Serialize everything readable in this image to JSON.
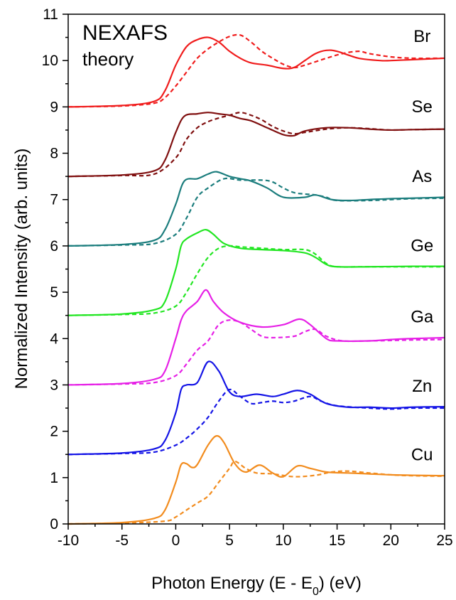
{
  "chart_data": {
    "type": "line",
    "title": "NEXAFS",
    "subtitle": "theory",
    "xlabel_parts": [
      "Photon Energy (E - E",
      "0",
      ") (eV)"
    ],
    "ylabel": "Normalized Intensity (arb. units)",
    "xlim": [
      -10,
      25
    ],
    "ylim": [
      0,
      11
    ],
    "xticks": [
      -10,
      -5,
      0,
      5,
      10,
      15,
      20,
      25
    ],
    "yticks": [
      0,
      1,
      2,
      3,
      4,
      5,
      6,
      7,
      8,
      9,
      10,
      11
    ],
    "grid": false,
    "legend": "none",
    "series": [
      {
        "name": "Cu",
        "color": "#f28c1e",
        "label_x": 22.9,
        "label_y": 1.37,
        "solid": [
          [
            -10,
            0
          ],
          [
            -5,
            0.03
          ],
          [
            -2,
            0.12
          ],
          [
            -1,
            0.3
          ],
          [
            0,
            0.9
          ],
          [
            0.5,
            1.28
          ],
          [
            1,
            1.3
          ],
          [
            1.5,
            1.22
          ],
          [
            2,
            1.28
          ],
          [
            3,
            1.7
          ],
          [
            3.8,
            1.9
          ],
          [
            4.5,
            1.75
          ],
          [
            5.5,
            1.3
          ],
          [
            6.5,
            1.12
          ],
          [
            7.8,
            1.27
          ],
          [
            9,
            1.1
          ],
          [
            10,
            1.02
          ],
          [
            11.3,
            1.25
          ],
          [
            12.5,
            1.2
          ],
          [
            14,
            1.12
          ],
          [
            16,
            1.1
          ],
          [
            18,
            1.08
          ],
          [
            20,
            1.06
          ],
          [
            22,
            1.05
          ],
          [
            25,
            1.04
          ]
        ],
        "dashed": [
          [
            -10,
            0
          ],
          [
            -5,
            0.02
          ],
          [
            -1,
            0.06
          ],
          [
            0,
            0.15
          ],
          [
            1,
            0.3
          ],
          [
            2,
            0.45
          ],
          [
            3,
            0.6
          ],
          [
            4,
            0.9
          ],
          [
            5,
            1.2
          ],
          [
            5.5,
            1.35
          ],
          [
            6.5,
            1.2
          ],
          [
            7.5,
            1.1
          ],
          [
            9,
            1.08
          ],
          [
            11,
            1.02
          ],
          [
            13,
            1.05
          ],
          [
            14.5,
            1.12
          ],
          [
            16,
            1.14
          ],
          [
            18,
            1.1
          ],
          [
            20,
            1.06
          ],
          [
            22,
            1.04
          ],
          [
            25,
            1.03
          ]
        ]
      },
      {
        "name": "Zn",
        "color": "#1414e6",
        "label_x": 22.9,
        "label_y": 2.85,
        "solid": [
          [
            -10,
            1.5
          ],
          [
            -5,
            1.53
          ],
          [
            -2,
            1.62
          ],
          [
            -1,
            1.8
          ],
          [
            0,
            2.4
          ],
          [
            0.5,
            2.9
          ],
          [
            1,
            3.0
          ],
          [
            2,
            3.05
          ],
          [
            3,
            3.5
          ],
          [
            4,
            3.3
          ],
          [
            5,
            2.85
          ],
          [
            6,
            2.75
          ],
          [
            7.5,
            2.8
          ],
          [
            9,
            2.75
          ],
          [
            10,
            2.8
          ],
          [
            11.3,
            2.88
          ],
          [
            12.5,
            2.8
          ],
          [
            14,
            2.6
          ],
          [
            16,
            2.52
          ],
          [
            18,
            2.52
          ],
          [
            20,
            2.5
          ],
          [
            22,
            2.52
          ],
          [
            25,
            2.53
          ]
        ],
        "dashed": [
          [
            -10,
            1.5
          ],
          [
            -5,
            1.52
          ],
          [
            -2,
            1.55
          ],
          [
            0,
            1.7
          ],
          [
            1,
            1.85
          ],
          [
            2,
            2.05
          ],
          [
            3,
            2.3
          ],
          [
            4,
            2.65
          ],
          [
            5,
            2.9
          ],
          [
            6,
            2.75
          ],
          [
            7,
            2.6
          ],
          [
            8,
            2.62
          ],
          [
            9,
            2.65
          ],
          [
            10,
            2.62
          ],
          [
            11,
            2.65
          ],
          [
            12.5,
            2.75
          ],
          [
            13.5,
            2.65
          ],
          [
            15,
            2.55
          ],
          [
            18,
            2.5
          ],
          [
            20,
            2.48
          ],
          [
            22,
            2.5
          ],
          [
            25,
            2.5
          ]
        ]
      },
      {
        "name": "Ga",
        "color": "#e620e6",
        "label_x": 22.9,
        "label_y": 4.35,
        "solid": [
          [
            -10,
            3.0
          ],
          [
            -5,
            3.03
          ],
          [
            -2,
            3.12
          ],
          [
            -1,
            3.3
          ],
          [
            0,
            4.0
          ],
          [
            0.5,
            4.4
          ],
          [
            1,
            4.6
          ],
          [
            2,
            4.8
          ],
          [
            2.8,
            5.05
          ],
          [
            3.5,
            4.8
          ],
          [
            4.5,
            4.55
          ],
          [
            6,
            4.35
          ],
          [
            8,
            4.25
          ],
          [
            10,
            4.3
          ],
          [
            11.5,
            4.42
          ],
          [
            12.5,
            4.3
          ],
          [
            14,
            4.0
          ],
          [
            15,
            3.95
          ],
          [
            18,
            3.95
          ],
          [
            20,
            3.98
          ],
          [
            22,
            4.0
          ],
          [
            25,
            4.02
          ]
        ],
        "dashed": [
          [
            -10,
            3.0
          ],
          [
            -5,
            3.02
          ],
          [
            -2,
            3.05
          ],
          [
            0,
            3.2
          ],
          [
            1,
            3.45
          ],
          [
            2,
            3.75
          ],
          [
            3,
            3.95
          ],
          [
            4,
            4.3
          ],
          [
            5,
            4.4
          ],
          [
            6,
            4.35
          ],
          [
            7,
            4.2
          ],
          [
            8,
            4.05
          ],
          [
            9,
            4.02
          ],
          [
            11,
            4.05
          ],
          [
            12,
            4.15
          ],
          [
            13,
            4.2
          ],
          [
            14,
            4.05
          ],
          [
            15.5,
            3.95
          ],
          [
            18,
            3.95
          ],
          [
            22,
            3.97
          ],
          [
            25,
            3.98
          ]
        ]
      },
      {
        "name": "Ge",
        "color": "#22e622",
        "label_x": 22.9,
        "label_y": 5.88,
        "solid": [
          [
            -10,
            4.5
          ],
          [
            -5,
            4.53
          ],
          [
            -2,
            4.62
          ],
          [
            -1,
            4.8
          ],
          [
            0,
            5.5
          ],
          [
            0.5,
            6.0
          ],
          [
            1,
            6.15
          ],
          [
            2,
            6.28
          ],
          [
            2.8,
            6.35
          ],
          [
            3.5,
            6.25
          ],
          [
            4.5,
            6.05
          ],
          [
            6,
            5.95
          ],
          [
            8,
            5.92
          ],
          [
            10,
            5.9
          ],
          [
            12,
            5.85
          ],
          [
            13,
            5.75
          ],
          [
            14,
            5.6
          ],
          [
            15,
            5.55
          ],
          [
            18,
            5.55
          ],
          [
            22,
            5.56
          ],
          [
            25,
            5.56
          ]
        ],
        "dashed": [
          [
            -10,
            4.5
          ],
          [
            -5,
            4.52
          ],
          [
            -2,
            4.55
          ],
          [
            0,
            4.7
          ],
          [
            1,
            5.0
          ],
          [
            2,
            5.4
          ],
          [
            3,
            5.75
          ],
          [
            4,
            5.95
          ],
          [
            5,
            6.0
          ],
          [
            6,
            5.98
          ],
          [
            8,
            5.95
          ],
          [
            10,
            5.92
          ],
          [
            12,
            5.92
          ],
          [
            13,
            5.82
          ],
          [
            14,
            5.62
          ],
          [
            15,
            5.55
          ],
          [
            18,
            5.55
          ],
          [
            25,
            5.55
          ]
        ]
      },
      {
        "name": "As",
        "color": "#1b7d7d",
        "label_x": 22.9,
        "label_y": 7.38,
        "solid": [
          [
            -10,
            6.0
          ],
          [
            -5,
            6.03
          ],
          [
            -2,
            6.12
          ],
          [
            -1,
            6.35
          ],
          [
            0,
            6.9
          ],
          [
            0.8,
            7.4
          ],
          [
            2,
            7.45
          ],
          [
            3,
            7.55
          ],
          [
            3.8,
            7.6
          ],
          [
            5,
            7.5
          ],
          [
            6,
            7.45
          ],
          [
            7,
            7.4
          ],
          [
            8.5,
            7.25
          ],
          [
            10,
            7.05
          ],
          [
            12,
            7.05
          ],
          [
            13,
            7.1
          ],
          [
            14.5,
            7.0
          ],
          [
            16,
            6.98
          ],
          [
            18,
            7.0
          ],
          [
            20,
            7.02
          ],
          [
            22,
            7.03
          ],
          [
            25,
            7.05
          ]
        ],
        "dashed": [
          [
            -10,
            6.0
          ],
          [
            -5,
            6.02
          ],
          [
            -2,
            6.05
          ],
          [
            0,
            6.25
          ],
          [
            1,
            6.6
          ],
          [
            2,
            7.05
          ],
          [
            3,
            7.25
          ],
          [
            4.5,
            7.45
          ],
          [
            6,
            7.42
          ],
          [
            8,
            7.42
          ],
          [
            9,
            7.38
          ],
          [
            10,
            7.25
          ],
          [
            11,
            7.15
          ],
          [
            12,
            7.12
          ],
          [
            13,
            7.1
          ],
          [
            14,
            7.05
          ],
          [
            15,
            6.98
          ],
          [
            18,
            6.98
          ],
          [
            20,
            7.0
          ],
          [
            22,
            7.02
          ],
          [
            25,
            7.03
          ]
        ]
      },
      {
        "name": "Se",
        "color": "#801010",
        "label_x": 22.9,
        "label_y": 8.88,
        "solid": [
          [
            -10,
            7.5
          ],
          [
            -5,
            7.53
          ],
          [
            -2,
            7.62
          ],
          [
            -1,
            7.85
          ],
          [
            0,
            8.45
          ],
          [
            0.8,
            8.8
          ],
          [
            2,
            8.85
          ],
          [
            3,
            8.88
          ],
          [
            4,
            8.85
          ],
          [
            5,
            8.82
          ],
          [
            6,
            8.75
          ],
          [
            7,
            8.7
          ],
          [
            8.5,
            8.55
          ],
          [
            10,
            8.4
          ],
          [
            11,
            8.38
          ],
          [
            12,
            8.48
          ],
          [
            14,
            8.55
          ],
          [
            16,
            8.55
          ],
          [
            18,
            8.52
          ],
          [
            20,
            8.5
          ],
          [
            22,
            8.51
          ],
          [
            25,
            8.52
          ]
        ],
        "dashed": [
          [
            -10,
            7.5
          ],
          [
            -5,
            7.52
          ],
          [
            -2,
            7.55
          ],
          [
            0,
            7.9
          ],
          [
            1,
            8.3
          ],
          [
            2,
            8.55
          ],
          [
            3,
            8.68
          ],
          [
            4,
            8.76
          ],
          [
            5,
            8.82
          ],
          [
            6,
            8.88
          ],
          [
            7,
            8.82
          ],
          [
            8,
            8.72
          ],
          [
            9,
            8.58
          ],
          [
            10,
            8.48
          ],
          [
            11,
            8.42
          ],
          [
            12,
            8.45
          ],
          [
            14,
            8.52
          ],
          [
            16,
            8.55
          ],
          [
            18,
            8.53
          ],
          [
            20,
            8.5
          ],
          [
            22,
            8.51
          ],
          [
            25,
            8.52
          ]
        ]
      },
      {
        "name": "Br",
        "color": "#f01d1d",
        "label_x": 22.9,
        "label_y": 10.4,
        "solid": [
          [
            -10,
            9.0
          ],
          [
            -5,
            9.03
          ],
          [
            -2,
            9.12
          ],
          [
            -1,
            9.35
          ],
          [
            0,
            9.9
          ],
          [
            1,
            10.3
          ],
          [
            2,
            10.45
          ],
          [
            3,
            10.5
          ],
          [
            4,
            10.4
          ],
          [
            5,
            10.2
          ],
          [
            6,
            10.05
          ],
          [
            7,
            9.95
          ],
          [
            8.5,
            9.9
          ],
          [
            10,
            9.83
          ],
          [
            11,
            9.85
          ],
          [
            12,
            10.0
          ],
          [
            13,
            10.15
          ],
          [
            14,
            10.22
          ],
          [
            15,
            10.2
          ],
          [
            17,
            10.05
          ],
          [
            19,
            10.0
          ],
          [
            20,
            10.0
          ],
          [
            22,
            10.02
          ],
          [
            25,
            10.05
          ]
        ],
        "dashed": [
          [
            -10,
            9.0
          ],
          [
            -5,
            9.02
          ],
          [
            -2,
            9.08
          ],
          [
            -1,
            9.2
          ],
          [
            0,
            9.45
          ],
          [
            1,
            9.75
          ],
          [
            2,
            10.05
          ],
          [
            3,
            10.25
          ],
          [
            4,
            10.4
          ],
          [
            5,
            10.52
          ],
          [
            6,
            10.55
          ],
          [
            7,
            10.4
          ],
          [
            8,
            10.2
          ],
          [
            9,
            10.05
          ],
          [
            10,
            9.92
          ],
          [
            11,
            9.85
          ],
          [
            12,
            9.9
          ],
          [
            14,
            10.05
          ],
          [
            15.5,
            10.15
          ],
          [
            17,
            10.2
          ],
          [
            18,
            10.15
          ],
          [
            20,
            10.08
          ],
          [
            22,
            10.05
          ],
          [
            25,
            10.05
          ]
        ]
      }
    ]
  }
}
